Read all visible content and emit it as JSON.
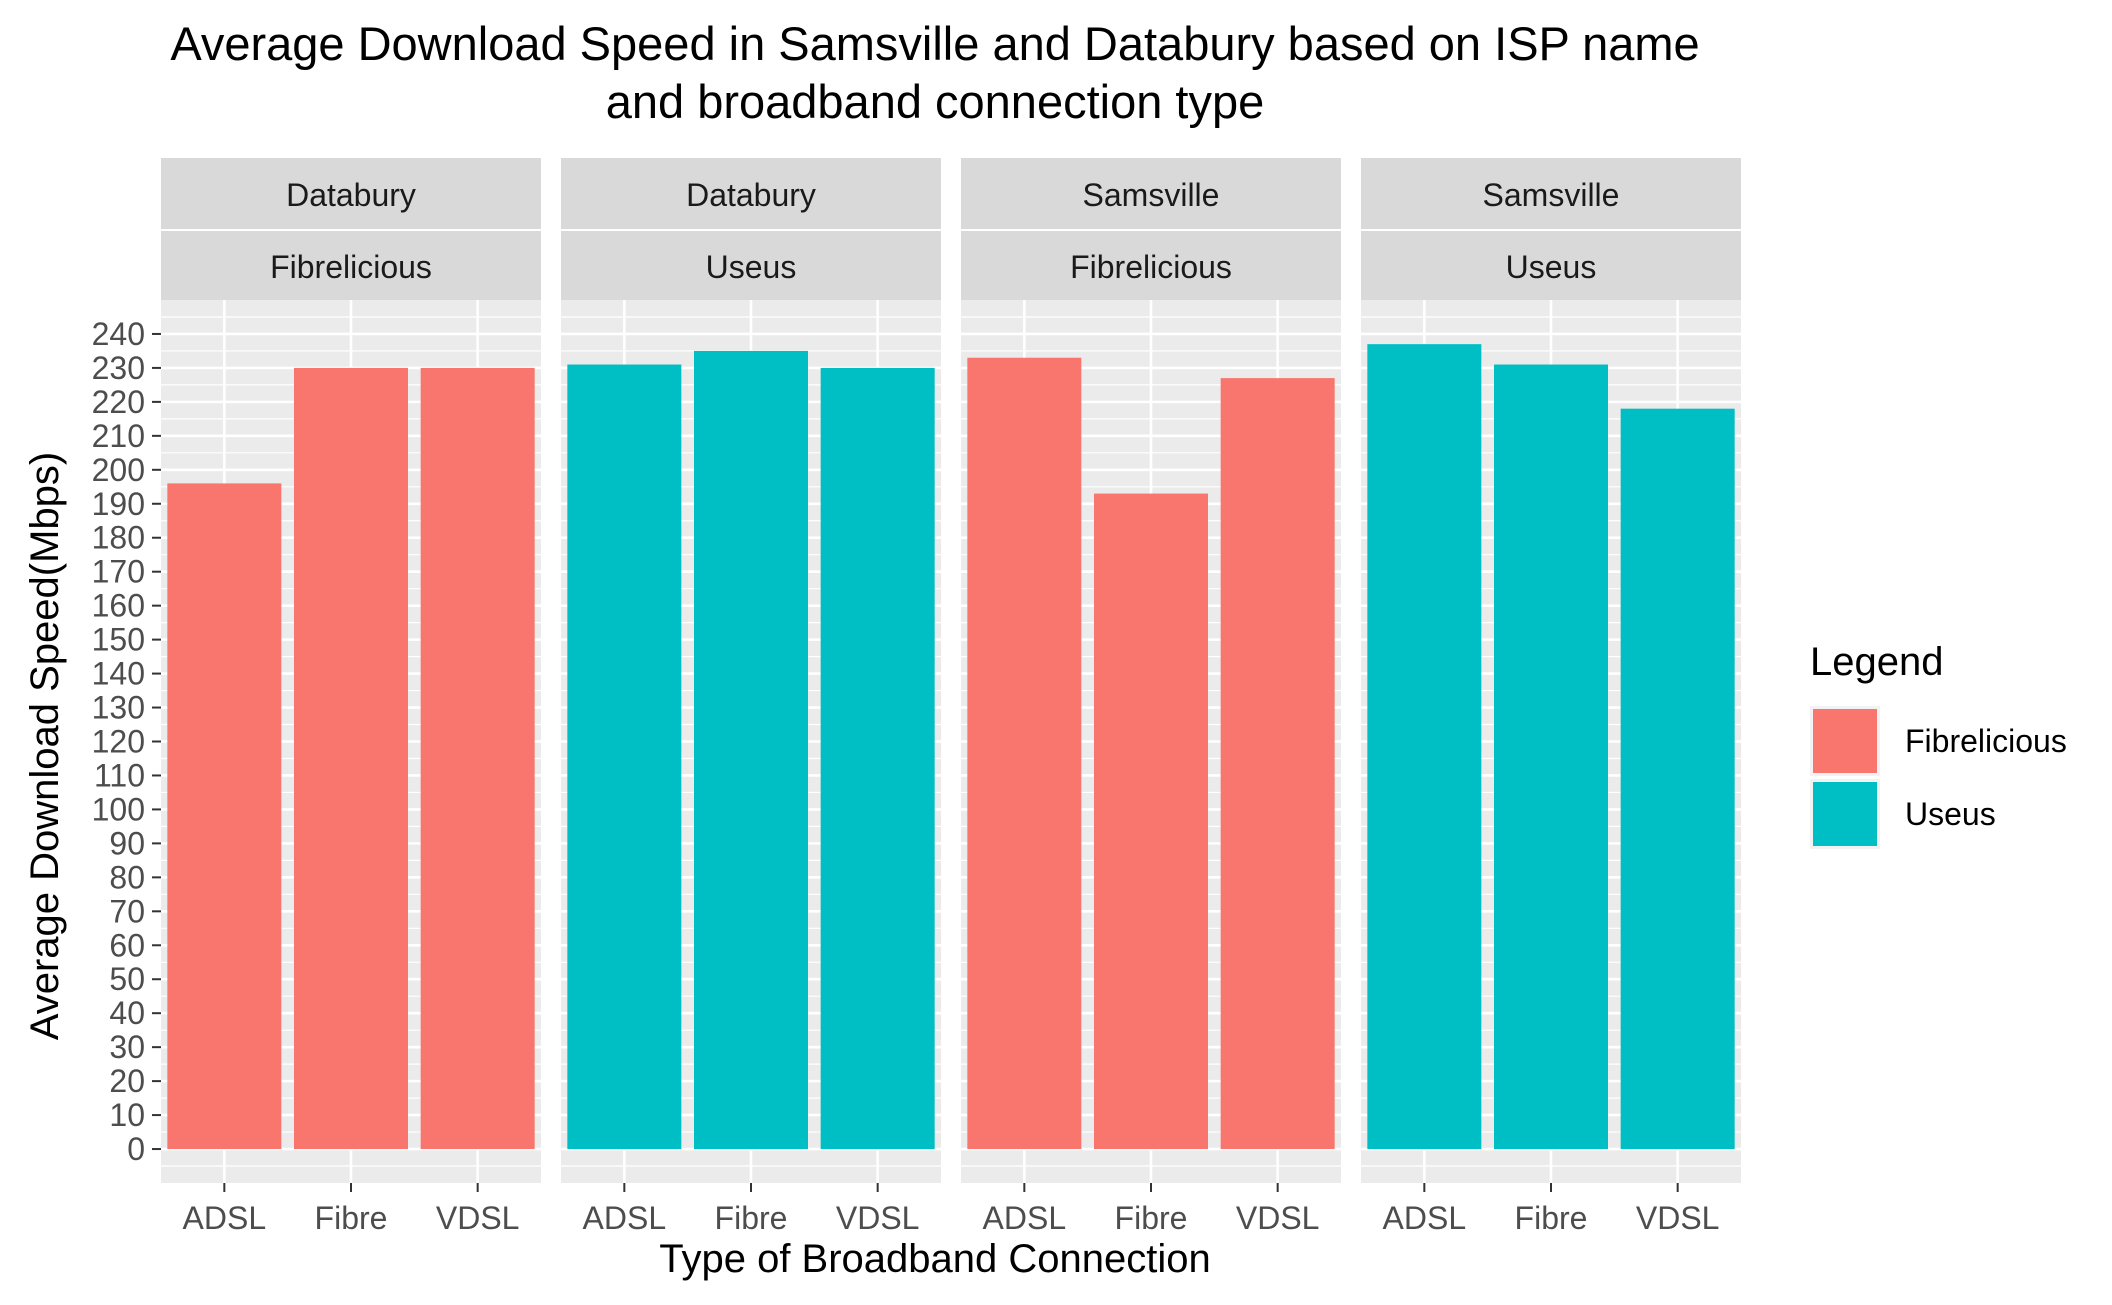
{
  "chart_data": {
    "type": "bar",
    "title": "Average Download Speed in Samsville and Databury based on ISP name",
    "subtitle": "and broadband connection type",
    "xlabel": "Type of Broadband Connection",
    "ylabel": "Average Download Speed(Mbps)",
    "ylim": [
      -10,
      250
    ],
    "yticks": [
      0,
      10,
      20,
      30,
      40,
      50,
      60,
      70,
      80,
      90,
      100,
      110,
      120,
      130,
      140,
      150,
      160,
      170,
      180,
      190,
      200,
      210,
      220,
      230,
      240
    ],
    "categories": [
      "ADSL",
      "Fibre",
      "VDSL"
    ],
    "grid": true,
    "legend": {
      "title": "Legend",
      "placement": "right",
      "items": [
        {
          "label": "Fibrelicious",
          "color": "#F8766D"
        },
        {
          "label": "Useus",
          "color": "#00BFC4"
        }
      ]
    },
    "panels": [
      {
        "town": "Databury",
        "isp": "Fibrelicious",
        "color": "#F8766D",
        "values": [
          196,
          230,
          230
        ]
      },
      {
        "town": "Databury",
        "isp": "Useus",
        "color": "#00BFC4",
        "values": [
          231,
          235,
          230
        ]
      },
      {
        "town": "Samsville",
        "isp": "Fibrelicious",
        "color": "#F8766D",
        "values": [
          233,
          193,
          227
        ]
      },
      {
        "town": "Samsville",
        "isp": "Useus",
        "color": "#00BFC4",
        "values": [
          237,
          231,
          218
        ]
      }
    ]
  },
  "colors": {
    "panel_bg": "#EBEBEB",
    "grid": "#FFFFFF",
    "strip_bg": "#D9D9D9"
  }
}
